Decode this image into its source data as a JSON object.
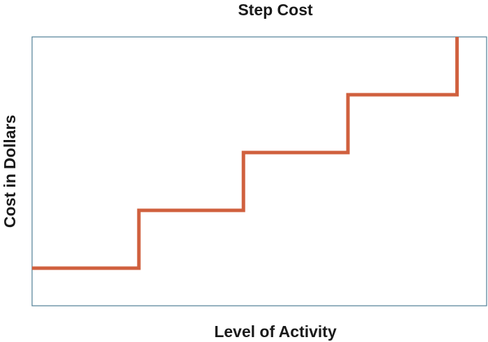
{
  "chart_data": {
    "type": "line",
    "title": "Step Cost",
    "xlabel": "Level of Activity",
    "ylabel": "Cost in Dollars",
    "x_ticks_shown": false,
    "y_ticks_shown": false,
    "grid": false,
    "legend": "none",
    "xlim": [
      0,
      100
    ],
    "ylim": [
      0,
      100
    ],
    "series": [
      {
        "step": "post",
        "color": "#d0603e",
        "x": [
          0,
          23.5,
          46.5,
          69.5,
          93.5
        ],
        "y": [
          14,
          35.5,
          57,
          78.5,
          100
        ]
      }
    ],
    "colors": {
      "frame": "#4f7f95",
      "line": "#d0603e",
      "text": "#1a1a1a"
    }
  }
}
